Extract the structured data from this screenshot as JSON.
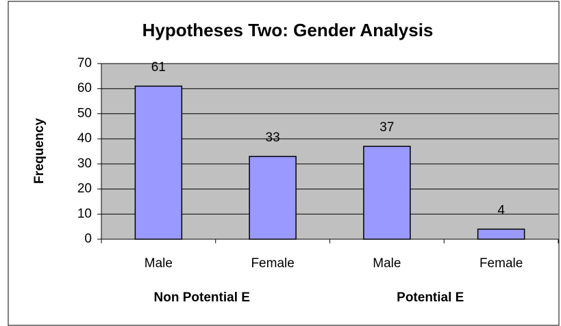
{
  "chart_data": {
    "type": "bar",
    "title": "Hypotheses Two: Gender Analysis",
    "y_label": "Frequency",
    "categories": [
      "Male",
      "Female",
      "Male",
      "Female"
    ],
    "groups": [
      "Non Potential E",
      "Potential E"
    ],
    "values": [
      61,
      33,
      37,
      4
    ],
    "color": "#9999ff",
    "ylim": [
      0,
      70
    ],
    "yticks": [
      0,
      10,
      20,
      30,
      40,
      50,
      60,
      70
    ],
    "grid": true
  }
}
